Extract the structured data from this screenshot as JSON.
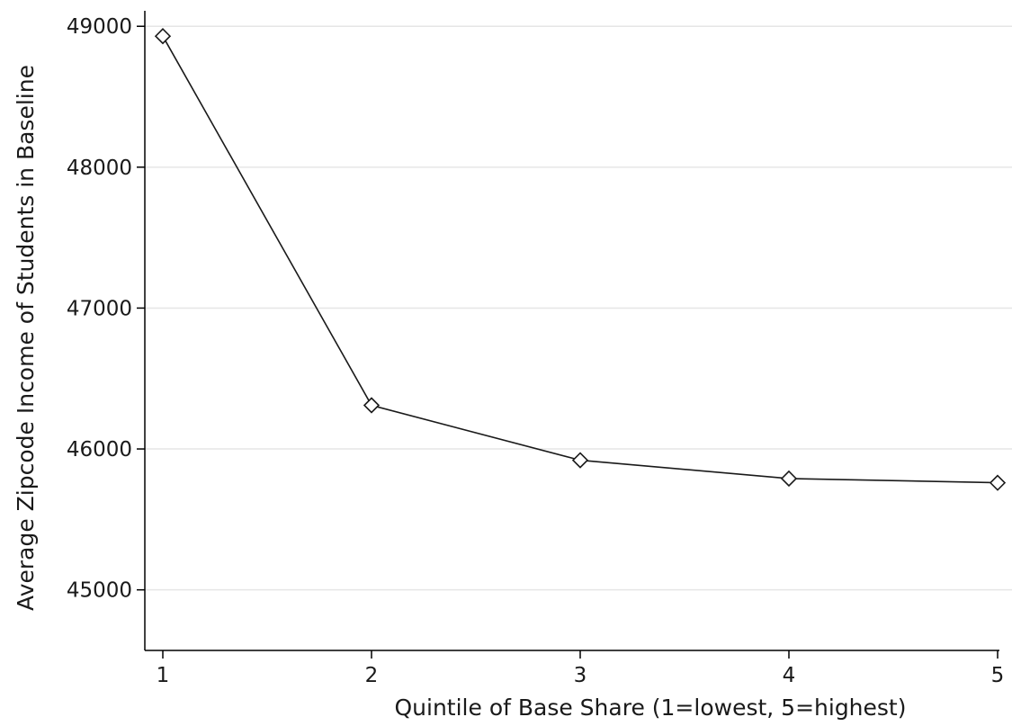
{
  "chart_data": {
    "type": "line",
    "title": "",
    "xlabel": "Quintile of Base Share (1=lowest, 5=highest)",
    "ylabel": "Average Zipcode Income of Students in Baseline",
    "x": [
      1,
      2,
      3,
      4,
      5
    ],
    "x_ticks": [
      "1",
      "2",
      "3",
      "4",
      "5"
    ],
    "y_ticks": [
      "45000",
      "46000",
      "47000",
      "48000",
      "49000"
    ],
    "ylim": [
      44570,
      49110
    ],
    "xlim": [
      1,
      5
    ],
    "grid": "horizontal",
    "legend": "none",
    "series": [
      {
        "values": [
          48930,
          46310,
          45920,
          45790,
          45760
        ],
        "marker": "hollow-diamond",
        "color": "#1a1a1a"
      }
    ],
    "colors": {
      "line": "#1a1a1a",
      "grid": "#e6e6e6",
      "axis": "#000000",
      "text": "#1a1a1a"
    }
  }
}
